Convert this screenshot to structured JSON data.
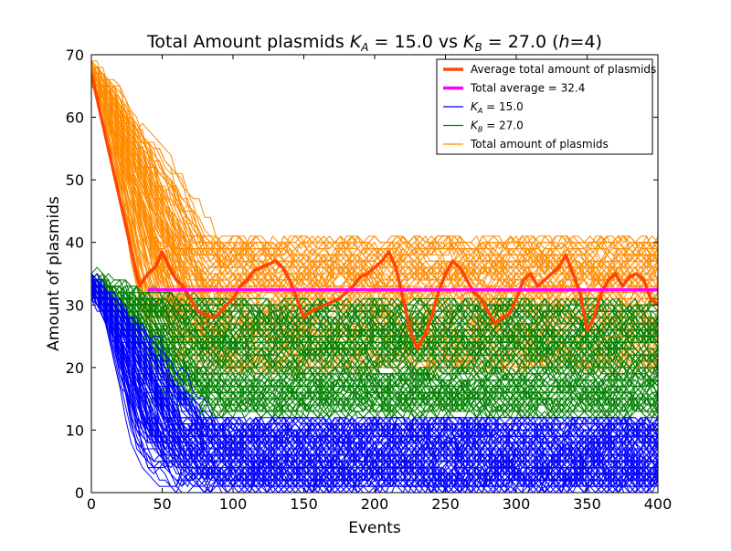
{
  "chart_data": {
    "type": "line",
    "title_parts": {
      "t1": "Total Amount plasmids ",
      "ka": "K",
      "ka_sub": "A",
      "t2": " = 15.0 vs ",
      "kb": "K",
      "kb_sub": "B",
      "t3": " = 27.0 (",
      "h": "h",
      "t4": "=4)"
    },
    "xlabel": "Events",
    "ylabel": "Amount of plasmids",
    "xlim": [
      0,
      400
    ],
    "ylim": [
      0,
      70
    ],
    "xticks": [
      0,
      50,
      100,
      150,
      200,
      250,
      300,
      350,
      400
    ],
    "yticks": [
      0,
      10,
      20,
      30,
      40,
      50,
      60,
      70
    ],
    "grid": false,
    "legend_placement": "top-right",
    "colors": {
      "average": "#ff4500",
      "total_average": "#ff00ff",
      "ka": "#0000ff",
      "kb": "#008000",
      "total": "#ff8c00"
    },
    "legend": [
      {
        "key": "average",
        "text": "Average total amount of plasmids",
        "thick": true
      },
      {
        "key": "total_average",
        "text": "Total average = 32.4",
        "thick": true
      },
      {
        "key": "ka",
        "math": "K",
        "sub": "A",
        "rest": " = 15.0",
        "thick": false
      },
      {
        "key": "kb",
        "math": "K",
        "sub": "B",
        "rest": " = 27.0",
        "thick": false
      },
      {
        "key": "total",
        "text": "Total amount of plasmids",
        "thick": false
      }
    ],
    "series": [
      {
        "name": "Average total amount of plasmids",
        "key": "average",
        "x": [
          0,
          34,
          40,
          45,
          50,
          55,
          60,
          65,
          70,
          75,
          80,
          85,
          90,
          95,
          100,
          105,
          110,
          115,
          120,
          125,
          130,
          135,
          140,
          145,
          150,
          155,
          160,
          165,
          170,
          175,
          180,
          185,
          190,
          195,
          200,
          205,
          210,
          215,
          220,
          225,
          230,
          235,
          240,
          245,
          250,
          255,
          260,
          265,
          270,
          275,
          280,
          285,
          290,
          295,
          300,
          305,
          310,
          315,
          320,
          325,
          330,
          335,
          340,
          345,
          350,
          355,
          360,
          365,
          370,
          375,
          380,
          385,
          390,
          395,
          400
        ],
        "y": [
          67,
          33,
          35,
          36,
          38.5,
          36,
          34,
          33,
          31,
          29,
          28.5,
          28,
          28.5,
          30,
          31,
          33,
          34,
          35.5,
          36,
          36.5,
          37,
          36,
          34,
          31,
          28,
          29,
          29.5,
          30,
          30.5,
          31,
          32,
          33,
          34.5,
          35,
          36,
          37,
          38.5,
          36,
          31,
          26,
          23,
          25,
          28,
          32,
          35,
          37,
          36,
          34,
          32,
          31,
          29,
          27,
          28,
          28.5,
          31,
          34,
          35,
          33,
          34,
          35,
          36,
          38,
          35,
          32,
          26,
          28,
          32,
          34,
          35,
          33,
          34.5,
          35,
          34,
          31,
          30
        ]
      },
      {
        "name": "Total average = 32.4",
        "key": "total_average",
        "x": [
          40,
          400
        ],
        "y": [
          32.4,
          32.4
        ]
      }
    ],
    "ensemble": {
      "total": {
        "label": "Total amount of plasmids",
        "count": 120,
        "start": 67,
        "plateau_low": 20,
        "plateau_high": 41
      },
      "kb": {
        "label": "K_B = 27.0",
        "count": 120,
        "start": 33,
        "plateau_low": 13,
        "plateau_high": 31
      },
      "ka": {
        "label": "K_A = 15.0",
        "count": 120,
        "start": 33,
        "plateau_low": 1,
        "plateau_high": 12
      }
    }
  }
}
